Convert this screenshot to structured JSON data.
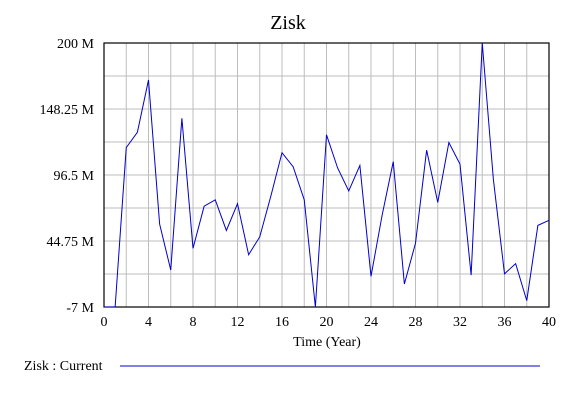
{
  "chart_data": {
    "type": "line",
    "title": "Zisk",
    "xlabel": "Time (Year)",
    "ylabel": "",
    "xlim": [
      0,
      40
    ],
    "ylim": [
      -7,
      200
    ],
    "x_ticks": [
      0,
      4,
      8,
      12,
      16,
      20,
      24,
      28,
      32,
      36,
      40
    ],
    "x_tick_labels": [
      "0",
      "4",
      "8",
      "12",
      "16",
      "20",
      "24",
      "28",
      "32",
      "36",
      "40"
    ],
    "y_ticks": [
      -7,
      44.75,
      96.5,
      148.25,
      200
    ],
    "y_tick_labels": [
      "-7 M",
      "44.75 M",
      "96.5 M",
      "148.25 M",
      "200 M"
    ],
    "grid": true,
    "legend": "bottom",
    "series": [
      {
        "name": "Zisk : Current",
        "color": "#0000cc",
        "x": [
          0,
          1,
          2,
          3,
          4,
          5,
          6,
          7,
          8,
          9,
          10,
          11,
          12,
          13,
          14,
          15,
          16,
          17,
          18,
          19,
          20,
          21,
          22,
          23,
          24,
          25,
          26,
          27,
          28,
          29,
          30,
          31,
          32,
          33,
          34,
          35,
          36,
          37,
          38,
          39,
          40
        ],
        "values": [
          -7,
          -7,
          118,
          130,
          171,
          58,
          22,
          141,
          39,
          72,
          77,
          53,
          74,
          34,
          48,
          80,
          114,
          103,
          77,
          -7,
          128,
          102,
          84,
          104,
          17,
          65,
          107,
          11,
          43,
          116,
          75,
          122,
          105,
          18,
          200,
          93,
          19,
          27,
          -2,
          57,
          61
        ]
      }
    ]
  }
}
